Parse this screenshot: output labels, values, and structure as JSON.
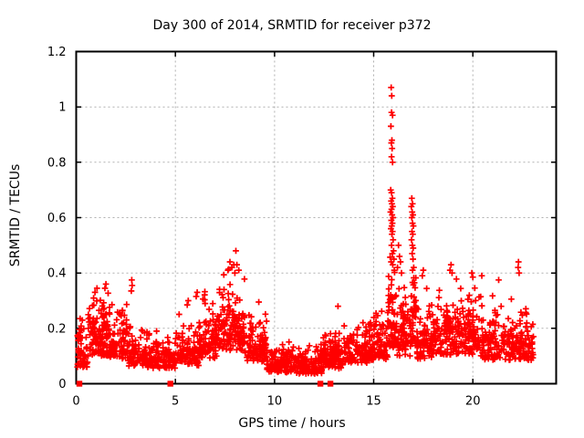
{
  "chart_data": {
    "type": "scatter",
    "title": "Day 300 of 2014, SRMTID for receiver p372",
    "xlabel": "GPS time / hours",
    "ylabel": "SRMTID / TECUs",
    "xlim": [
      0,
      24.2
    ],
    "ylim": [
      0,
      1.2
    ],
    "xticks": {
      "values": [
        0,
        5,
        10,
        15,
        20
      ],
      "labels": [
        "0",
        "5",
        "10",
        "15",
        "20"
      ]
    },
    "yticks": {
      "values": [
        0,
        0.2,
        0.4,
        0.6,
        0.8,
        1,
        1.2
      ],
      "labels": [
        "0",
        "0.2",
        "0.4",
        "0.6",
        "0.8",
        "1",
        "1.2"
      ]
    },
    "grid": true,
    "legend": "none",
    "series_name": "SRMTID",
    "marker": "plus",
    "marker_color": "#ff0000",
    "grid_color": "#b0b0b0",
    "border_color": "#000000",
    "seed": 20141300,
    "point_clusters": [
      [
        0.05,
        0.6,
        55,
        0.06,
        0.09,
        0.28
      ],
      [
        0.6,
        1.7,
        130,
        0.1,
        0.1,
        0.345
      ],
      [
        1.7,
        2.6,
        90,
        0.09,
        0.09,
        0.33
      ],
      [
        2.6,
        3.6,
        85,
        0.06,
        0.065,
        0.25
      ],
      [
        3.6,
        5.1,
        115,
        0.055,
        0.055,
        0.21
      ],
      [
        5.1,
        6.2,
        95,
        0.065,
        0.07,
        0.28
      ],
      [
        6.2,
        7.1,
        95,
        0.09,
        0.09,
        0.34
      ],
      [
        7.1,
        8.5,
        150,
        0.12,
        0.11,
        0.42
      ],
      [
        8.5,
        9.6,
        95,
        0.08,
        0.08,
        0.3
      ],
      [
        9.6,
        11.1,
        135,
        0.04,
        0.045,
        0.16
      ],
      [
        11.1,
        12.4,
        115,
        0.035,
        0.045,
        0.15
      ],
      [
        12.4,
        13.5,
        105,
        0.055,
        0.06,
        0.23
      ],
      [
        13.5,
        14.8,
        105,
        0.075,
        0.065,
        0.26
      ],
      [
        14.8,
        15.7,
        85,
        0.085,
        0.075,
        0.3
      ],
      [
        15.7,
        16.15,
        70,
        0.13,
        0.13,
        0.48
      ],
      [
        16.15,
        16.85,
        70,
        0.1,
        0.1,
        0.38
      ],
      [
        16.85,
        17.15,
        40,
        0.13,
        0.12,
        0.42
      ],
      [
        17.15,
        18.2,
        100,
        0.09,
        0.085,
        0.35
      ],
      [
        18.2,
        19.2,
        100,
        0.105,
        0.1,
        0.4
      ],
      [
        19.2,
        20.4,
        120,
        0.105,
        0.095,
        0.38
      ],
      [
        20.4,
        21.6,
        110,
        0.085,
        0.085,
        0.36
      ],
      [
        21.6,
        23.05,
        125,
        0.085,
        0.09,
        0.4
      ]
    ],
    "outlier_points": [
      [
        15.88,
        1.07
      ],
      [
        15.91,
        1.04
      ],
      [
        15.9,
        0.98
      ],
      [
        15.95,
        0.97
      ],
      [
        15.87,
        0.93
      ],
      [
        15.92,
        0.88
      ],
      [
        15.89,
        0.87
      ],
      [
        15.93,
        0.85
      ],
      [
        15.9,
        0.82
      ],
      [
        15.95,
        0.8
      ],
      [
        15.86,
        0.7
      ],
      [
        15.9,
        0.69
      ],
      [
        15.94,
        0.67
      ],
      [
        15.88,
        0.66
      ],
      [
        15.92,
        0.65
      ],
      [
        15.96,
        0.64
      ],
      [
        15.9,
        0.63
      ],
      [
        15.85,
        0.62
      ],
      [
        15.93,
        0.61
      ],
      [
        15.97,
        0.6
      ],
      [
        15.89,
        0.59
      ],
      [
        15.94,
        0.58
      ],
      [
        15.91,
        0.57
      ],
      [
        15.87,
        0.56
      ],
      [
        15.95,
        0.55
      ],
      [
        15.92,
        0.54
      ],
      [
        15.98,
        0.52
      ],
      [
        15.9,
        0.5
      ],
      [
        16.0,
        0.48
      ],
      [
        15.94,
        0.47
      ],
      [
        16.02,
        0.45
      ],
      [
        15.88,
        0.44
      ],
      [
        15.96,
        0.43
      ],
      [
        16.04,
        0.41
      ],
      [
        16.92,
        0.67
      ],
      [
        16.96,
        0.65
      ],
      [
        16.9,
        0.64
      ],
      [
        16.94,
        0.62
      ],
      [
        16.98,
        0.61
      ],
      [
        16.92,
        0.6
      ],
      [
        16.96,
        0.58
      ],
      [
        17.0,
        0.57
      ],
      [
        16.93,
        0.55
      ],
      [
        16.97,
        0.54
      ],
      [
        16.91,
        0.52
      ],
      [
        16.95,
        0.5
      ],
      [
        16.99,
        0.49
      ],
      [
        16.94,
        0.47
      ],
      [
        16.98,
        0.45
      ],
      [
        17.02,
        0.42
      ],
      [
        16.96,
        0.41
      ],
      [
        16.25,
        0.5
      ],
      [
        16.3,
        0.46
      ],
      [
        16.35,
        0.44
      ],
      [
        16.2,
        0.42
      ],
      [
        16.4,
        0.4
      ],
      [
        8.05,
        0.48
      ],
      [
        7.75,
        0.44
      ],
      [
        7.95,
        0.43
      ],
      [
        8.1,
        0.43
      ],
      [
        7.85,
        0.42
      ],
      [
        8.2,
        0.41
      ],
      [
        7.65,
        0.41
      ],
      [
        8.0,
        0.4
      ],
      [
        1.5,
        0.36
      ],
      [
        1.45,
        0.345
      ],
      [
        1.05,
        0.345
      ],
      [
        0.95,
        0.33
      ],
      [
        2.8,
        0.375
      ],
      [
        2.82,
        0.355
      ],
      [
        2.78,
        0.335
      ],
      [
        5.65,
        0.3
      ],
      [
        5.6,
        0.285
      ],
      [
        6.1,
        0.33
      ],
      [
        6.05,
        0.315
      ],
      [
        13.2,
        0.28
      ],
      [
        17.5,
        0.41
      ],
      [
        17.45,
        0.39
      ],
      [
        18.9,
        0.43
      ],
      [
        18.85,
        0.41
      ],
      [
        18.95,
        0.4
      ],
      [
        19.95,
        0.4
      ],
      [
        20.0,
        0.385
      ],
      [
        20.45,
        0.39
      ],
      [
        21.3,
        0.375
      ],
      [
        22.3,
        0.44
      ],
      [
        22.28,
        0.42
      ],
      [
        22.33,
        0.4
      ]
    ],
    "zero_time_points": [
      0.16,
      4.75,
      12.31,
      12.82
    ]
  }
}
